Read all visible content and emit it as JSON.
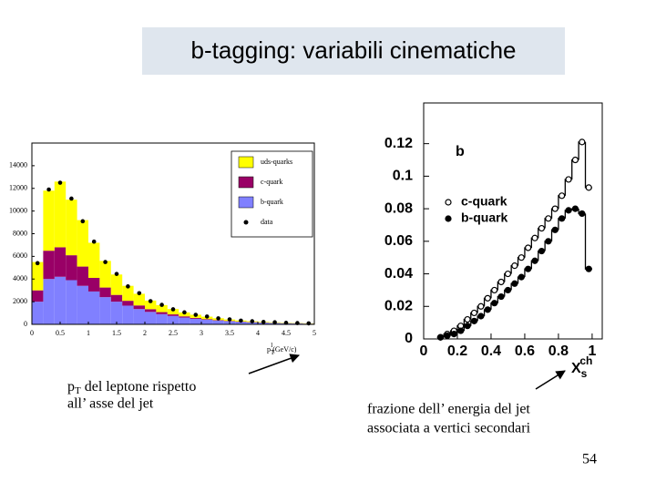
{
  "title": "b-tagging: variabili cinematiche",
  "caption_left": {
    "p": "p",
    "sub": "T",
    "rest": " del leptone rispetto",
    "line2": "all’ asse del jet"
  },
  "caption_right": {
    "line1": "frazione dell’ energia del jet",
    "line2": "associata a vertici secondari"
  },
  "page_number": "54",
  "chart_data": [
    {
      "type": "histogram",
      "x_label": {
        "p": "p",
        "sub": "T",
        "sup": "l",
        "unit": "(GeV/c)"
      },
      "bins": [
        0,
        0.2,
        0.4,
        0.6,
        0.8,
        1,
        1.2,
        1.4,
        1.6,
        1.8,
        2,
        2.2,
        2.4,
        2.6,
        2.8,
        3,
        3.2,
        3.4,
        3.6,
        3.8,
        4,
        4.2,
        4.4,
        4.6,
        4.8,
        5
      ],
      "series": [
        {
          "name": "b-quark",
          "color": "#8080ff",
          "values": [
            2000,
            4000,
            4200,
            3900,
            3400,
            2900,
            2400,
            2000,
            1650,
            1350,
            1100,
            900,
            740,
            600,
            490,
            400,
            330,
            270,
            220,
            180,
            150,
            120,
            95,
            75,
            60
          ]
        },
        {
          "name": "c-quark",
          "color": "#990066",
          "values": [
            1000,
            2500,
            2600,
            2200,
            1700,
            1200,
            850,
            600,
            430,
            320,
            240,
            180,
            140,
            105,
            80,
            60,
            45,
            35,
            25,
            20,
            15,
            12,
            10,
            8,
            6
          ]
        },
        {
          "name": "uds-quarks",
          "color": "#ffff00",
          "values": [
            2500,
            5300,
            5800,
            4900,
            4100,
            3100,
            2350,
            1800,
            1320,
            1030,
            760,
            620,
            470,
            345,
            280,
            220,
            165,
            125,
            95,
            70,
            55,
            48,
            35,
            27,
            24
          ]
        }
      ],
      "points": {
        "name": "data",
        "color": "#000000",
        "values": [
          5400,
          11900,
          12500,
          11100,
          9100,
          7300,
          5500,
          4450,
          3350,
          2750,
          2050,
          1720,
          1330,
          1060,
          840,
          690,
          530,
          440,
          330,
          275,
          215,
          185,
          135,
          115,
          88
        ]
      },
      "xlim": [
        0,
        5
      ],
      "xticks": [
        0,
        0.5,
        1,
        1.5,
        2,
        2.5,
        3,
        3.5,
        4,
        4.5,
        5
      ],
      "ylim": [
        0,
        16000
      ],
      "yticks": [
        0,
        2000,
        4000,
        6000,
        8000,
        10000,
        12000,
        14000
      ]
    },
    {
      "type": "step",
      "annotation": "b",
      "x_label": {
        "x": "X",
        "sub": "s",
        "sup": "ch"
      },
      "x": [
        0.02,
        0.06,
        0.1,
        0.14,
        0.18,
        0.22,
        0.26,
        0.3,
        0.34,
        0.38,
        0.42,
        0.46,
        0.5,
        0.54,
        0.58,
        0.62,
        0.66,
        0.7,
        0.74,
        0.78,
        0.82,
        0.86,
        0.9,
        0.94,
        0.98
      ],
      "series": [
        {
          "name": "c-quark",
          "marker": "open",
          "values": [
            null,
            null,
            0.001,
            0.003,
            0.005,
            0.008,
            0.012,
            0.016,
            0.02,
            0.025,
            0.03,
            0.035,
            0.04,
            0.045,
            0.05,
            0.056,
            0.062,
            0.068,
            0.074,
            0.08,
            0.088,
            0.098,
            0.11,
            0.121,
            0.093
          ]
        },
        {
          "name": "b-quark",
          "marker": "filled",
          "values": [
            null,
            null,
            0.001,
            0.002,
            0.003,
            0.005,
            0.008,
            0.011,
            0.014,
            0.018,
            0.022,
            0.026,
            0.03,
            0.034,
            0.038,
            0.043,
            0.048,
            0.054,
            0.06,
            0.067,
            0.074,
            0.079,
            0.08,
            0.077,
            0.043
          ]
        }
      ],
      "xlim": [
        0,
        1.06
      ],
      "xticks": [
        0,
        0.2,
        0.4,
        0.6,
        0.8,
        1
      ],
      "ylim": [
        0,
        0.145
      ],
      "yticks": [
        0,
        0.02,
        0.04,
        0.06,
        0.08,
        0.1,
        0.12
      ]
    }
  ]
}
